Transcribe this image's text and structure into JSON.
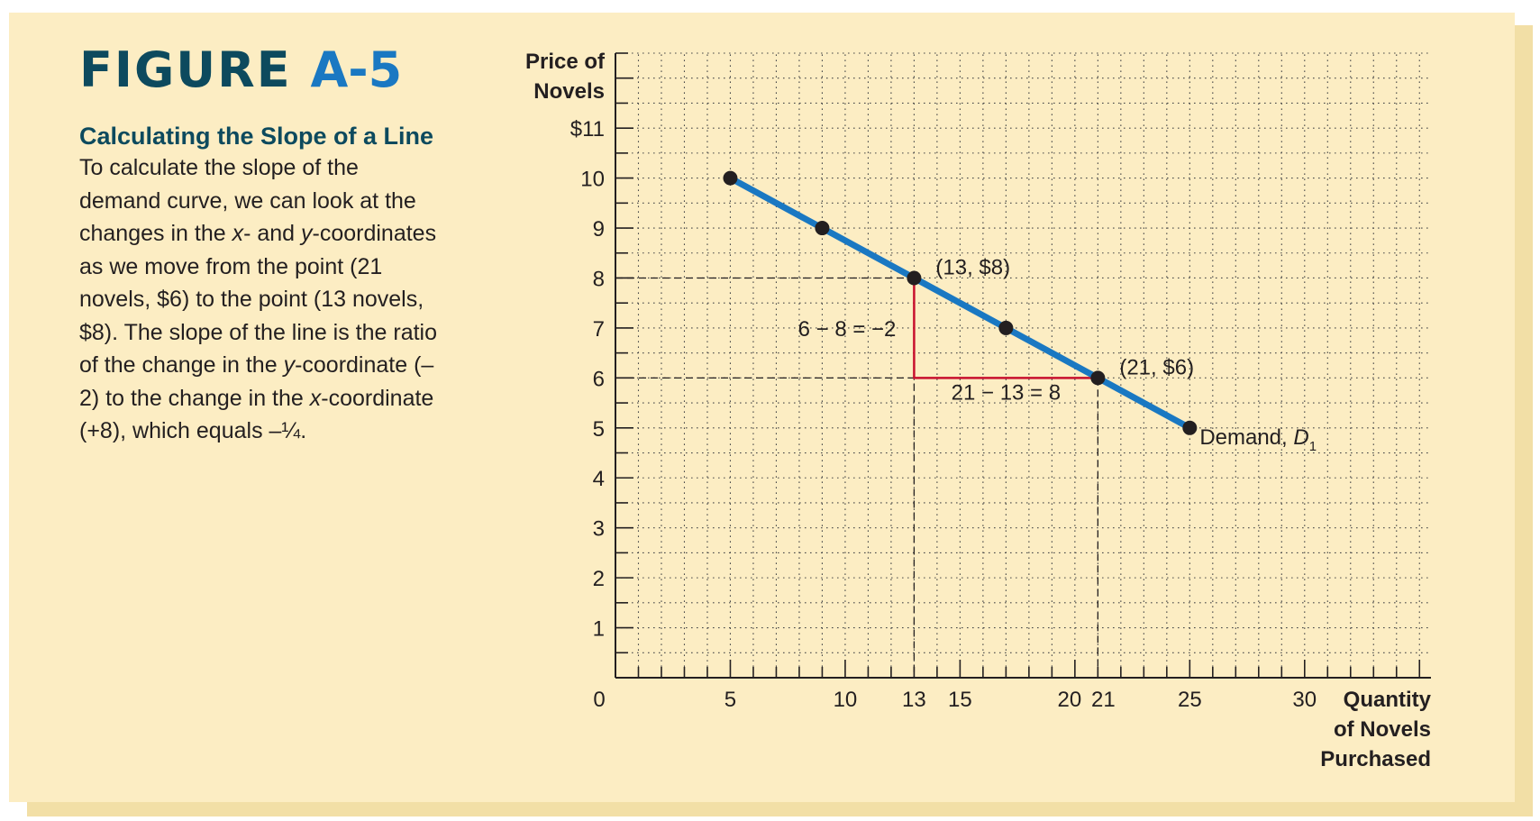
{
  "figure": {
    "label": "FIGURE",
    "number": "A-5",
    "heading": "Calculating the Slope of a Line",
    "body": [
      {
        "text": "To calculate the slope of the demand curve, we can look at the changes in the "
      },
      {
        "text": "x",
        "em": true
      },
      {
        "text": "- and "
      },
      {
        "text": "y",
        "em": true
      },
      {
        "text": "-coordinates as we move from the point (21 novels, $6) to the point (13 novels, $8). The slope of the line is the ratio of the change in the "
      },
      {
        "text": "y",
        "em": true
      },
      {
        "text": "-coordinate (–2) to the change in the "
      },
      {
        "text": "x",
        "em": true
      },
      {
        "text": "-coordinate (+8), which equals –¼."
      }
    ]
  },
  "chart_data": {
    "type": "line",
    "ylabel": [
      "Price of",
      "Novels"
    ],
    "xlabel": [
      "Quantity",
      "of Novels",
      "Purchased"
    ],
    "xlim": [
      0,
      35.5
    ],
    "ylim": [
      0,
      12.5
    ],
    "x_ticks": [
      {
        "value": 0,
        "label": "0"
      },
      {
        "value": 5,
        "label": "5"
      },
      {
        "value": 10,
        "label": "10"
      },
      {
        "value": 13,
        "label": "13"
      },
      {
        "value": 15,
        "label": "15"
      },
      {
        "value": 20,
        "label": "20"
      },
      {
        "value": 21,
        "label": "21"
      },
      {
        "value": 25,
        "label": "25"
      },
      {
        "value": 30,
        "label": "30"
      }
    ],
    "y_ticks": [
      {
        "value": 1,
        "label": "1"
      },
      {
        "value": 2,
        "label": "2"
      },
      {
        "value": 3,
        "label": "3"
      },
      {
        "value": 4,
        "label": "4"
      },
      {
        "value": 5,
        "label": "5"
      },
      {
        "value": 6,
        "label": "6"
      },
      {
        "value": 7,
        "label": "7"
      },
      {
        "value": 8,
        "label": "8"
      },
      {
        "value": 9,
        "label": "9"
      },
      {
        "value": 10,
        "label": "10"
      },
      {
        "value": 11,
        "label": "$11"
      }
    ],
    "grid": true,
    "series": [
      {
        "name": "Demand, D1",
        "label_main": "Demand, ",
        "label_italic": "D",
        "label_sub": "1",
        "color": "#1a78c2",
        "x": [
          5,
          9,
          13,
          17,
          21,
          25
        ],
        "y": [
          10,
          9,
          8,
          7,
          6,
          5
        ]
      }
    ],
    "points_labeled": [
      {
        "x": 13,
        "y": 8,
        "label": "(13, $8)"
      },
      {
        "x": 21,
        "y": 6,
        "label": "(21, $6)"
      }
    ],
    "slope_triangle": {
      "color": "#c8102e",
      "from": [
        13,
        8
      ],
      "corner": [
        13,
        6
      ],
      "to": [
        21,
        6
      ],
      "rise_label": "6 − 8 = −2",
      "run_label": "21 − 13 = 8"
    }
  }
}
